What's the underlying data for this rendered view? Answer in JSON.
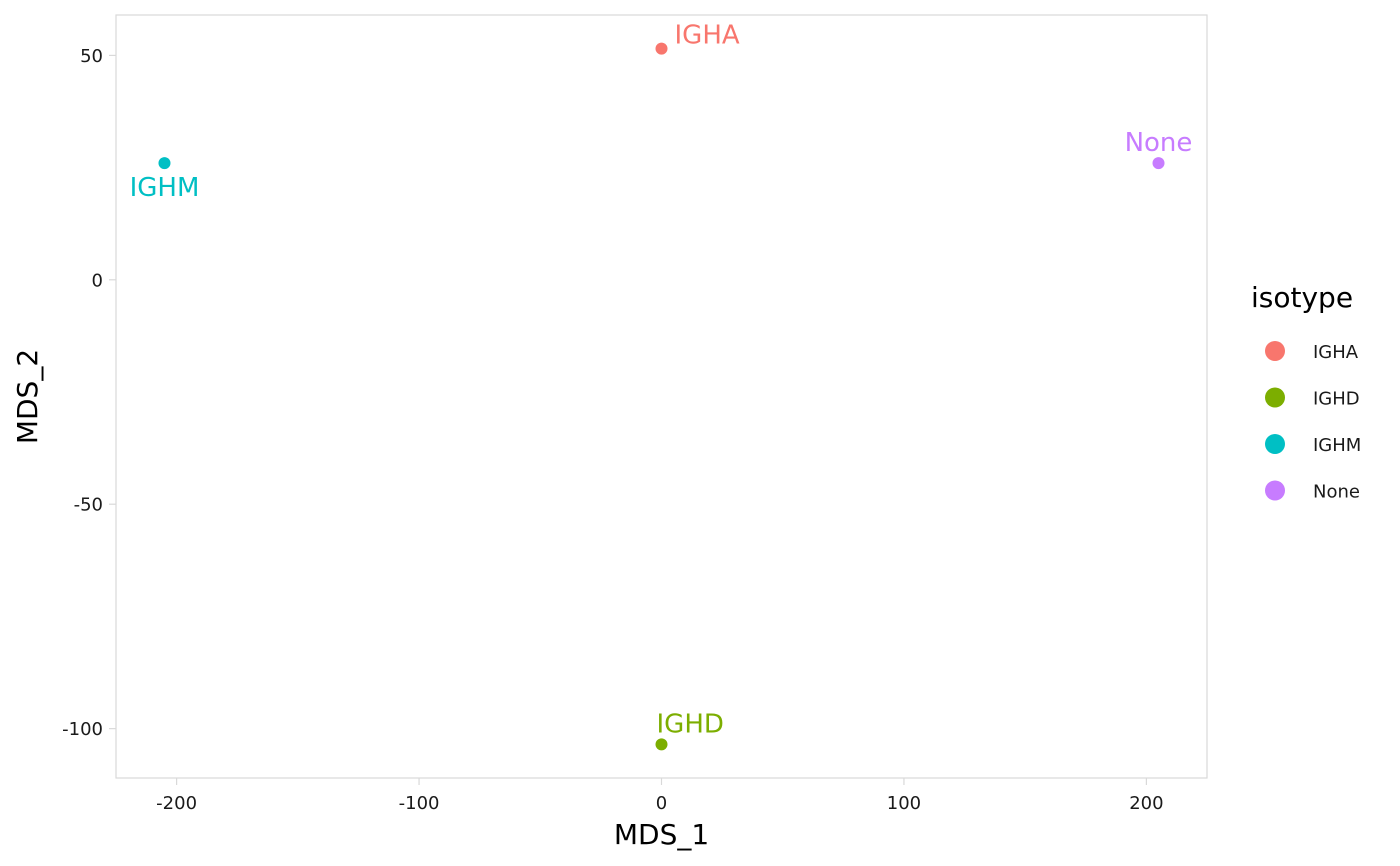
{
  "chart_data": {
    "type": "scatter",
    "xlabel": "MDS_1",
    "ylabel": "MDS_2",
    "xlim": [
      -225,
      225
    ],
    "ylim": [
      -111,
      59
    ],
    "x_ticks": [
      -200,
      -100,
      0,
      100,
      200
    ],
    "y_ticks": [
      -100,
      -50,
      0,
      50
    ],
    "grid": false,
    "legend": {
      "title": "isotype",
      "position": "right",
      "entries": [
        "IGHA",
        "IGHD",
        "IGHM",
        "None"
      ]
    },
    "colors": {
      "IGHA": "#F8766D",
      "IGHD": "#7CAE00",
      "IGHM": "#00BFC4",
      "None": "#C77CFF"
    },
    "points": [
      {
        "label": "IGHA",
        "group": "IGHA",
        "x": 0,
        "y": 51.5
      },
      {
        "label": "IGHD",
        "group": "IGHD",
        "x": 0,
        "y": -103.5
      },
      {
        "label": "IGHM",
        "group": "IGHM",
        "x": -205,
        "y": 26
      },
      {
        "label": "None",
        "group": "None",
        "x": 205,
        "y": 26
      }
    ]
  }
}
